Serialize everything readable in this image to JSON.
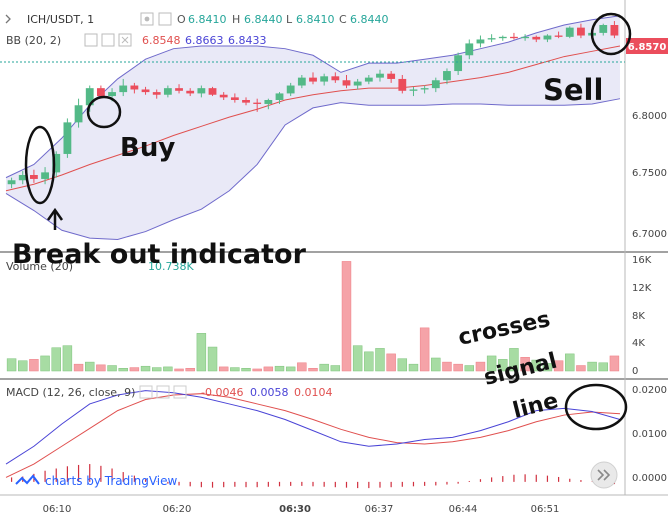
{
  "header": {
    "symbol": "ICH/USDT, 1",
    "ohlc": [
      {
        "k": "O",
        "v": "6.8410"
      },
      {
        "k": "H",
        "v": "6.8440"
      },
      {
        "k": "L",
        "v": "6.8410"
      },
      {
        "k": "C",
        "v": "6.8440"
      }
    ],
    "bb_label": "BB (20, 2)",
    "bb_values": [
      "6.8548",
      "6.8663",
      "6.8433"
    ],
    "volume_label": "Volume (20)",
    "volume_value": "10.738K",
    "macd_label": "MACD (12, 26, close, 9)",
    "macd_values": [
      "-0.0046",
      "0.0058",
      "0.0104"
    ]
  },
  "colors": {
    "up": "#26a69a",
    "up_candle": "#53b987",
    "down": "#eb4d5c",
    "bb_fill": "#e2e1f4",
    "bb_line": "#6f6acb",
    "bb_mid": "#e0504f",
    "macd_line": "#4a44d6",
    "signal_line": "#e0504f",
    "hist": "#d1303f",
    "vol_up": "#a7dca3",
    "vol_down": "#f5a3a8",
    "price_tag": "#eb4d5c",
    "price_line": "#26a69a"
  },
  "price_axis": {
    "ticks": [
      "6.8000",
      "6.7500",
      "6.7000"
    ],
    "current": "6.8570"
  },
  "volume_axis": {
    "ticks": [
      "16K",
      "12K",
      "8K",
      "4K",
      "0"
    ]
  },
  "macd_axis": {
    "ticks": [
      "0.0200",
      "0.0100",
      "0.0000"
    ]
  },
  "time_axis": {
    "ticks": [
      "06:10",
      "06:20",
      "06:30",
      "06:37",
      "06:44",
      "06:51"
    ]
  },
  "annotations": {
    "buy": "Buy",
    "sell": "Sell",
    "breakout": "Break out indicator",
    "crosses": [
      "crosses",
      "signal",
      "line"
    ]
  },
  "branding": {
    "text": "charts by TradingView",
    "nav_icon": "double-chevron-right-icon"
  },
  "chart_data": [
    {
      "type": "candlestick",
      "title": "ICH/USDT, 1",
      "ylim": [
        6.685,
        6.875
      ],
      "candles": [
        [
          6.735,
          6.74,
          6.732,
          6.738
        ],
        [
          6.738,
          6.745,
          6.735,
          6.742
        ],
        [
          6.742,
          6.746,
          6.736,
          6.739
        ],
        [
          6.739,
          6.748,
          6.735,
          6.744
        ],
        [
          6.744,
          6.76,
          6.74,
          6.758
        ],
        [
          6.758,
          6.785,
          6.755,
          6.782
        ],
        [
          6.782,
          6.8,
          6.778,
          6.795
        ],
        [
          6.795,
          6.81,
          6.79,
          6.808
        ],
        [
          6.808,
          6.81,
          6.8,
          6.802
        ],
        [
          6.802,
          6.808,
          6.798,
          6.805
        ],
        [
          6.805,
          6.815,
          6.802,
          6.81
        ],
        [
          6.81,
          6.812,
          6.804,
          6.807
        ],
        [
          6.807,
          6.809,
          6.803,
          6.805
        ],
        [
          6.805,
          6.807,
          6.8,
          6.803
        ],
        [
          6.803,
          6.81,
          6.801,
          6.808
        ],
        [
          6.808,
          6.811,
          6.804,
          6.806
        ],
        [
          6.806,
          6.808,
          6.802,
          6.804
        ],
        [
          6.804,
          6.81,
          6.801,
          6.808
        ],
        [
          6.808,
          6.809,
          6.802,
          6.803
        ],
        [
          6.803,
          6.805,
          6.799,
          6.801
        ],
        [
          6.801,
          6.804,
          6.797,
          6.799
        ],
        [
          6.799,
          6.801,
          6.795,
          6.797
        ],
        [
          6.797,
          6.8,
          6.79,
          6.796
        ],
        [
          6.796,
          6.8,
          6.792,
          6.799
        ],
        [
          6.799,
          6.805,
          6.796,
          6.804
        ],
        [
          6.804,
          6.812,
          6.802,
          6.81
        ],
        [
          6.81,
          6.818,
          6.808,
          6.816
        ],
        [
          6.816,
          6.82,
          6.811,
          6.813
        ],
        [
          6.813,
          6.819,
          6.81,
          6.817
        ],
        [
          6.817,
          6.82,
          6.812,
          6.814
        ],
        [
          6.814,
          6.818,
          6.808,
          6.81
        ],
        [
          6.81,
          6.815,
          6.807,
          6.813
        ],
        [
          6.813,
          6.818,
          6.811,
          6.816
        ],
        [
          6.816,
          6.822,
          6.813,
          6.819
        ],
        [
          6.819,
          6.821,
          6.812,
          6.815
        ],
        [
          6.815,
          6.818,
          6.804,
          6.806
        ],
        [
          6.806,
          6.809,
          6.802,
          6.807
        ],
        [
          6.807,
          6.81,
          6.804,
          6.808
        ],
        [
          6.808,
          6.816,
          6.805,
          6.814
        ],
        [
          6.814,
          6.823,
          6.811,
          6.821
        ],
        [
          6.821,
          6.835,
          6.818,
          6.833
        ],
        [
          6.833,
          6.845,
          6.83,
          6.842
        ],
        [
          6.842,
          6.848,
          6.839,
          6.845
        ],
        [
          6.845,
          6.849,
          6.843,
          6.846
        ],
        [
          6.846,
          6.848,
          6.844,
          6.847
        ],
        [
          6.847,
          6.85,
          6.845,
          6.846
        ],
        [
          6.846,
          6.849,
          6.844,
          6.847
        ],
        [
          6.847,
          6.848,
          6.843,
          6.845
        ],
        [
          6.845,
          6.849,
          6.843,
          6.848
        ],
        [
          6.848,
          6.851,
          6.846,
          6.847
        ],
        [
          6.847,
          6.855,
          6.846,
          6.854
        ],
        [
          6.854,
          6.857,
          6.846,
          6.848
        ],
        [
          6.848,
          6.852,
          6.846,
          6.85
        ],
        [
          6.85,
          6.857,
          6.848,
          6.856
        ],
        [
          6.856,
          6.859,
          6.846,
          6.848
        ]
      ],
      "bb_upper": [
        6.74,
        6.75,
        6.77,
        6.795,
        6.815,
        6.83,
        6.838,
        6.84,
        6.84,
        6.84,
        6.838,
        6.833,
        6.82,
        6.827,
        6.827,
        6.83,
        6.833,
        6.838,
        6.843,
        6.85,
        6.856,
        6.86,
        6.863
      ],
      "bb_lower": [
        6.728,
        6.715,
        6.7,
        6.694,
        6.693,
        6.699,
        6.708,
        6.716,
        6.73,
        6.75,
        6.78,
        6.793,
        6.797,
        6.795,
        6.795,
        6.795,
        6.796,
        6.796,
        6.795,
        6.795,
        6.795,
        6.796,
        6.8
      ],
      "bb_mid": [
        6.73,
        6.735,
        6.742,
        6.75,
        6.757,
        6.764,
        6.772,
        6.779,
        6.786,
        6.792,
        6.799,
        6.803,
        6.806,
        6.808,
        6.808,
        6.81,
        6.813,
        6.816,
        6.82,
        6.826,
        6.832,
        6.836,
        6.84
      ]
    },
    {
      "type": "bar",
      "title": "Volume (20)",
      "ylim": [
        0,
        16500
      ],
      "values": [
        1800,
        1500,
        1700,
        2200,
        3400,
        3700,
        1000,
        1300,
        900,
        800,
        400,
        500,
        700,
        500,
        600,
        300,
        400,
        5500,
        3500,
        600,
        500,
        400,
        300,
        600,
        700,
        600,
        1200,
        400,
        1000,
        800,
        16000,
        3700,
        2800,
        3300,
        2500,
        1800,
        1000,
        6300,
        1900,
        1300,
        1000,
        800,
        1300,
        2200,
        1700,
        3300,
        2000,
        1600,
        1100,
        1500,
        2500,
        800,
        1300,
        1200,
        2200
      ],
      "up": [
        1,
        1,
        0,
        1,
        1,
        1,
        0,
        1,
        0,
        1,
        1,
        0,
        1,
        1,
        1,
        0,
        0,
        1,
        1,
        0,
        1,
        1,
        0,
        0,
        1,
        1,
        0,
        0,
        1,
        1,
        0,
        1,
        1,
        1,
        0,
        1,
        1,
        0,
        1,
        0,
        0,
        1,
        0,
        1,
        1,
        1,
        0,
        1,
        1,
        0,
        1,
        0,
        1,
        1,
        0
      ]
    },
    {
      "type": "line",
      "title": "MACD (12, 26, close, 9)",
      "ylim": [
        -0.0025,
        0.0222
      ],
      "macd": [
        0.004,
        0.008,
        0.013,
        0.0175,
        0.0195,
        0.0205,
        0.02,
        0.019,
        0.0175,
        0.016,
        0.014,
        0.0115,
        0.009,
        0.008,
        0.0085,
        0.0095,
        0.01,
        0.0115,
        0.0135,
        0.016,
        0.0165,
        0.0158,
        0.014
      ],
      "signal": [
        0.001,
        0.004,
        0.008,
        0.012,
        0.016,
        0.0185,
        0.0195,
        0.0198,
        0.019,
        0.0175,
        0.016,
        0.014,
        0.0118,
        0.01,
        0.0088,
        0.0085,
        0.009,
        0.01,
        0.0115,
        0.0135,
        0.015,
        0.0157,
        0.0153
      ],
      "hist": [
        0.001,
        0.0012,
        0.0018,
        0.0025,
        0.003,
        0.0035,
        0.0038,
        0.004,
        0.0036,
        0.003,
        0.0022,
        0.0014,
        0.0006,
        0.0001,
        -0.0004,
        -0.0008,
        -0.001,
        -0.0012,
        -0.0013,
        -0.0012,
        -0.0011,
        -0.0012,
        -0.0012,
        -0.0011,
        -0.001,
        -0.0009,
        -0.0009,
        -0.001,
        -0.0011,
        -0.0012,
        -0.0013,
        -0.0014,
        -0.0014,
        -0.0013,
        -0.0012,
        -0.0011,
        -0.001,
        -0.0009,
        -0.0008,
        -0.0006,
        -0.0004,
        0.0002,
        0.0006,
        0.001,
        0.0013,
        0.0016,
        0.0017,
        0.0016,
        0.0014,
        0.0011,
        0.0007,
        0.0004,
        0.0001,
        -0.0002,
        -0.0005
      ]
    }
  ]
}
